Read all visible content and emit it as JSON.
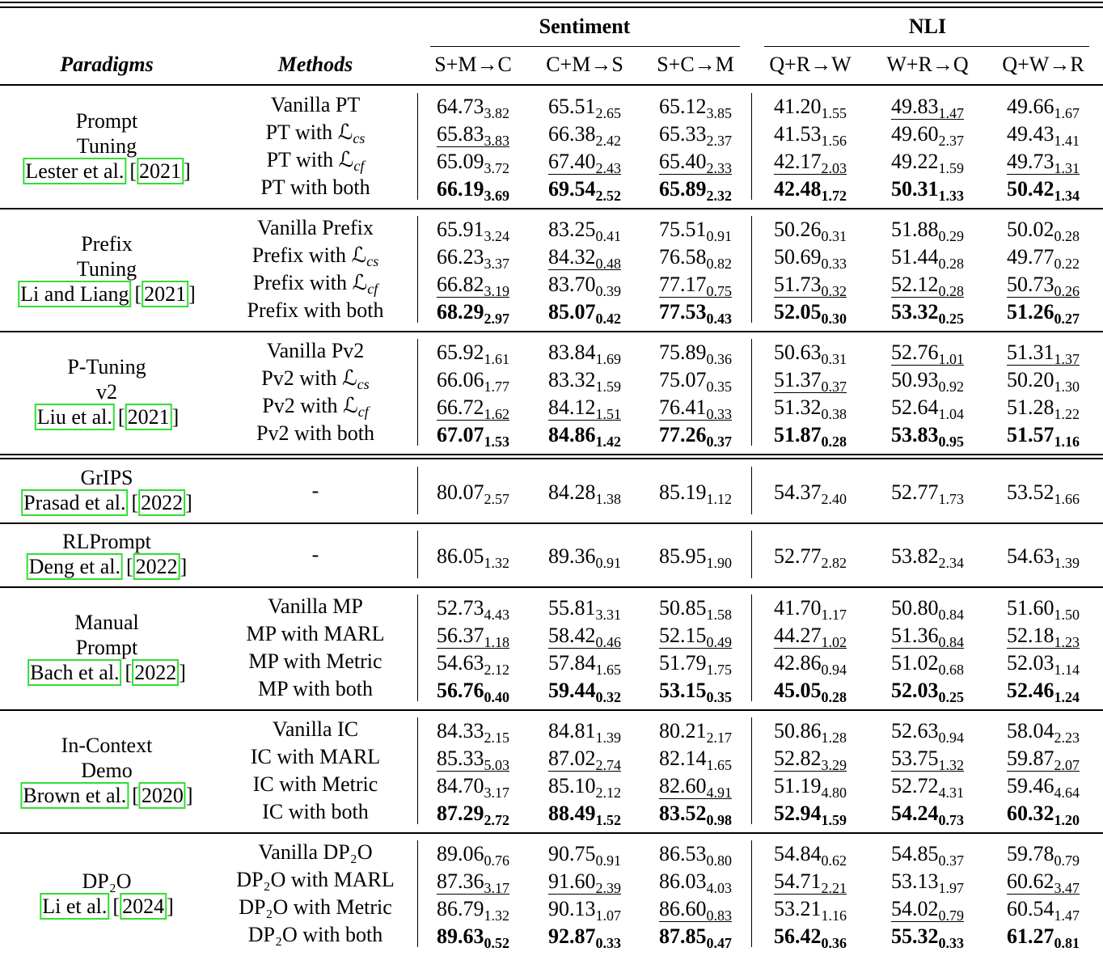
{
  "table": {
    "groups": [
      "Sentiment",
      "NLI"
    ],
    "columns": [
      "Paradigms",
      "Methods",
      "S+M→C",
      "C+M→S",
      "S+C→M",
      "Q+R→W",
      "W+R→Q",
      "Q+W→R"
    ],
    "sections": [
      {
        "paradigm": [
          "Prompt",
          "Tuning"
        ],
        "cite": [
          "Lester et al.",
          "[",
          "2021",
          "]"
        ],
        "rows": [
          {
            "method": "Vanilla PT",
            "cells": [
              [
                "64.73",
                "3.82"
              ],
              [
                "65.51",
                "2.65"
              ],
              [
                "65.12",
                "3.85"
              ],
              [
                "41.20",
                "1.55"
              ],
              [
                "49.83",
                "1.47"
              ],
              [
                "49.66",
                "1.67"
              ]
            ],
            "underline": [
              4
            ]
          },
          {
            "method": {
              "text": "PT with ℒ",
              "sub": "cs"
            },
            "cells": [
              [
                "65.83",
                "3.83"
              ],
              [
                "66.38",
                "2.42"
              ],
              [
                "65.33",
                "2.37"
              ],
              [
                "41.53",
                "1.56"
              ],
              [
                "49.60",
                "2.37"
              ],
              [
                "49.43",
                "1.41"
              ]
            ],
            "underline": [
              0
            ]
          },
          {
            "method": {
              "text": "PT with ℒ",
              "sub": "cf"
            },
            "cells": [
              [
                "65.09",
                "3.72"
              ],
              [
                "67.40",
                "2.43"
              ],
              [
                "65.40",
                "2.33"
              ],
              [
                "42.17",
                "2.03"
              ],
              [
                "49.22",
                "1.59"
              ],
              [
                "49.73",
                "1.31"
              ]
            ],
            "underline": [
              1,
              2,
              3,
              5
            ]
          },
          {
            "method": "PT with both",
            "cells": [
              [
                "66.19",
                "3.69"
              ],
              [
                "69.54",
                "2.52"
              ],
              [
                "65.89",
                "2.32"
              ],
              [
                "42.48",
                "1.72"
              ],
              [
                "50.31",
                "1.33"
              ],
              [
                "50.42",
                "1.34"
              ]
            ],
            "bold": true
          }
        ]
      },
      {
        "paradigm": [
          "Prefix",
          "Tuning"
        ],
        "cite": [
          "Li and Liang",
          "[",
          "2021",
          "]"
        ],
        "rows": [
          {
            "method": "Vanilla Prefix",
            "cells": [
              [
                "65.91",
                "3.24"
              ],
              [
                "83.25",
                "0.41"
              ],
              [
                "75.51",
                "0.91"
              ],
              [
                "50.26",
                "0.31"
              ],
              [
                "51.88",
                "0.29"
              ],
              [
                "50.02",
                "0.28"
              ]
            ]
          },
          {
            "method": {
              "text": "Prefix with ℒ",
              "sub": "cs"
            },
            "cells": [
              [
                "66.23",
                "3.37"
              ],
              [
                "84.32",
                "0.48"
              ],
              [
                "76.58",
                "0.82"
              ],
              [
                "50.69",
                "0.33"
              ],
              [
                "51.44",
                "0.28"
              ],
              [
                "49.77",
                "0.22"
              ]
            ],
            "underline": [
              1
            ]
          },
          {
            "method": {
              "text": "Prefix with ℒ",
              "sub": "cf"
            },
            "cells": [
              [
                "66.82",
                "3.19"
              ],
              [
                "83.70",
                "0.39"
              ],
              [
                "77.17",
                "0.75"
              ],
              [
                "51.73",
                "0.32"
              ],
              [
                "52.12",
                "0.28"
              ],
              [
                "50.73",
                "0.26"
              ]
            ],
            "underline": [
              0,
              2,
              3,
              4,
              5
            ]
          },
          {
            "method": "Prefix with both",
            "cells": [
              [
                "68.29",
                "2.97"
              ],
              [
                "85.07",
                "0.42"
              ],
              [
                "77.53",
                "0.43"
              ],
              [
                "52.05",
                "0.30"
              ],
              [
                "53.32",
                "0.25"
              ],
              [
                "51.26",
                "0.27"
              ]
            ],
            "bold": true
          }
        ]
      },
      {
        "paradigm": [
          "P-Tuning",
          "v2"
        ],
        "cite": [
          "Liu et al.",
          "[",
          "2021",
          "]"
        ],
        "rows": [
          {
            "method": "Vanilla Pv2",
            "cells": [
              [
                "65.92",
                "1.61"
              ],
              [
                "83.84",
                "1.69"
              ],
              [
                "75.89",
                "0.36"
              ],
              [
                "50.63",
                "0.31"
              ],
              [
                "52.76",
                "1.01"
              ],
              [
                "51.31",
                "1.37"
              ]
            ],
            "underline": [
              4,
              5
            ]
          },
          {
            "method": {
              "text": "Pv2 with ℒ",
              "sub": "cs"
            },
            "cells": [
              [
                "66.06",
                "1.77"
              ],
              [
                "83.32",
                "1.59"
              ],
              [
                "75.07",
                "0.35"
              ],
              [
                "51.37",
                "0.37"
              ],
              [
                "50.93",
                "0.92"
              ],
              [
                "50.20",
                "1.30"
              ]
            ],
            "underline": [
              3
            ]
          },
          {
            "method": {
              "text": "Pv2 with ℒ",
              "sub": "cf"
            },
            "cells": [
              [
                "66.72",
                "1.62"
              ],
              [
                "84.12",
                "1.51"
              ],
              [
                "76.41",
                "0.33"
              ],
              [
                "51.32",
                "0.38"
              ],
              [
                "52.64",
                "1.04"
              ],
              [
                "51.28",
                "1.22"
              ]
            ],
            "underline": [
              0,
              1,
              2
            ]
          },
          {
            "method": "Pv2 with both",
            "cells": [
              [
                "67.07",
                "1.53"
              ],
              [
                "84.86",
                "1.42"
              ],
              [
                "77.26",
                "0.37"
              ],
              [
                "51.87",
                "0.28"
              ],
              [
                "53.83",
                "0.95"
              ],
              [
                "51.57",
                "1.16"
              ]
            ],
            "bold": true
          }
        ]
      },
      {
        "paradigm": [
          "GrIPS"
        ],
        "cite": [
          "Prasad et al.",
          "[",
          "2022",
          "]"
        ],
        "rows": [
          {
            "method": "-",
            "cells": [
              [
                "80.07",
                "2.57"
              ],
              [
                "84.28",
                "1.38"
              ],
              [
                "85.19",
                "1.12"
              ],
              [
                "54.37",
                "2.40"
              ],
              [
                "52.77",
                "1.73"
              ],
              [
                "53.52",
                "1.66"
              ]
            ]
          }
        ]
      },
      {
        "paradigm": [
          "RLPrompt"
        ],
        "cite": [
          "Deng et al.",
          "[",
          "2022",
          "]"
        ],
        "rows": [
          {
            "method": "-",
            "cells": [
              [
                "86.05",
                "1.32"
              ],
              [
                "89.36",
                "0.91"
              ],
              [
                "85.95",
                "1.90"
              ],
              [
                "52.77",
                "2.82"
              ],
              [
                "53.82",
                "2.34"
              ],
              [
                "54.63",
                "1.39"
              ]
            ]
          }
        ]
      },
      {
        "paradigm": [
          "Manual",
          "Prompt"
        ],
        "cite": [
          "Bach et al.",
          "[",
          "2022",
          "]"
        ],
        "rows": [
          {
            "method": "Vanilla MP",
            "cells": [
              [
                "52.73",
                "4.43"
              ],
              [
                "55.81",
                "3.31"
              ],
              [
                "50.85",
                "1.58"
              ],
              [
                "41.70",
                "1.17"
              ],
              [
                "50.80",
                "0.84"
              ],
              [
                "51.60",
                "1.50"
              ]
            ]
          },
          {
            "method": "MP with MARL",
            "cells": [
              [
                "56.37",
                "1.18"
              ],
              [
                "58.42",
                "0.46"
              ],
              [
                "52.15",
                "0.49"
              ],
              [
                "44.27",
                "1.02"
              ],
              [
                "51.36",
                "0.84"
              ],
              [
                "52.18",
                "1.23"
              ]
            ],
            "underline": [
              0,
              1,
              2,
              3,
              4,
              5
            ]
          },
          {
            "method": "MP with Metric",
            "cells": [
              [
                "54.63",
                "2.12"
              ],
              [
                "57.84",
                "1.65"
              ],
              [
                "51.79",
                "1.75"
              ],
              [
                "42.86",
                "0.94"
              ],
              [
                "51.02",
                "0.68"
              ],
              [
                "52.03",
                "1.14"
              ]
            ]
          },
          {
            "method": "MP with both",
            "cells": [
              [
                "56.76",
                "0.40"
              ],
              [
                "59.44",
                "0.32"
              ],
              [
                "53.15",
                "0.35"
              ],
              [
                "45.05",
                "0.28"
              ],
              [
                "52.03",
                "0.25"
              ],
              [
                "52.46",
                "1.24"
              ]
            ],
            "bold": true
          }
        ]
      },
      {
        "paradigm": [
          "In-Context",
          "Demo"
        ],
        "cite": [
          "Brown et al.",
          "[",
          "2020",
          "]"
        ],
        "rows": [
          {
            "method": "Vanilla IC",
            "cells": [
              [
                "84.33",
                "2.15"
              ],
              [
                "84.81",
                "1.39"
              ],
              [
                "80.21",
                "2.17"
              ],
              [
                "50.86",
                "1.28"
              ],
              [
                "52.63",
                "0.94"
              ],
              [
                "58.04",
                "2.23"
              ]
            ]
          },
          {
            "method": "IC with MARL",
            "cells": [
              [
                "85.33",
                "5.03"
              ],
              [
                "87.02",
                "2.74"
              ],
              [
                "82.14",
                "1.65"
              ],
              [
                "52.82",
                "3.29"
              ],
              [
                "53.75",
                "1.32"
              ],
              [
                "59.87",
                "2.07"
              ]
            ],
            "underline": [
              0,
              1,
              3,
              4,
              5
            ]
          },
          {
            "method": "IC with Metric",
            "cells": [
              [
                "84.70",
                "3.17"
              ],
              [
                "85.10",
                "2.12"
              ],
              [
                "82.60",
                "4.91"
              ],
              [
                "51.19",
                "4.80"
              ],
              [
                "52.72",
                "4.31"
              ],
              [
                "59.46",
                "4.64"
              ]
            ],
            "underline": [
              2
            ]
          },
          {
            "method": "IC with both",
            "cells": [
              [
                "87.29",
                "2.72"
              ],
              [
                "88.49",
                "1.52"
              ],
              [
                "83.52",
                "0.98"
              ],
              [
                "52.94",
                "1.59"
              ],
              [
                "54.24",
                "0.73"
              ],
              [
                "60.32",
                "1.20"
              ]
            ],
            "bold": true
          }
        ]
      },
      {
        "paradigm": [
          "DP₂O"
        ],
        "cite": [
          "Li et al.",
          "[",
          "2024",
          "]"
        ],
        "rows": [
          {
            "method": "Vanilla DP₂O",
            "cells": [
              [
                "89.06",
                "0.76"
              ],
              [
                "90.75",
                "0.91"
              ],
              [
                "86.53",
                "0.80"
              ],
              [
                "54.84",
                "0.62"
              ],
              [
                "54.85",
                "0.37"
              ],
              [
                "59.78",
                "0.79"
              ]
            ]
          },
          {
            "method": "DP₂O with MARL",
            "cells": [
              [
                "87.36",
                "3.17"
              ],
              [
                "91.60",
                "2.39"
              ],
              [
                "86.03",
                "4.03"
              ],
              [
                "54.71",
                "2.21"
              ],
              [
                "53.13",
                "1.97"
              ],
              [
                "60.62",
                "3.47"
              ]
            ],
            "underline": [
              0,
              1,
              3,
              5
            ]
          },
          {
            "method": "DP₂O with Metric",
            "cells": [
              [
                "86.79",
                "1.32"
              ],
              [
                "90.13",
                "1.07"
              ],
              [
                "86.60",
                "0.83"
              ],
              [
                "53.21",
                "1.16"
              ],
              [
                "54.02",
                "0.79"
              ],
              [
                "60.54",
                "1.47"
              ]
            ],
            "underline": [
              2,
              4
            ]
          },
          {
            "method": "DP₂O with both",
            "cells": [
              [
                "89.63",
                "0.52"
              ],
              [
                "92.87",
                "0.33"
              ],
              [
                "87.85",
                "0.47"
              ],
              [
                "56.42",
                "0.36"
              ],
              [
                "55.32",
                "0.33"
              ],
              [
                "61.27",
                "0.81"
              ]
            ],
            "bold": true
          }
        ]
      }
    ]
  }
}
